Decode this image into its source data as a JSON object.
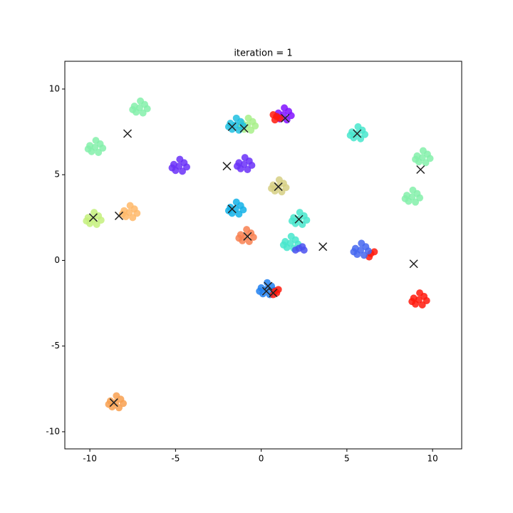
{
  "chart_data": {
    "type": "scatter",
    "title": "iteration = 1",
    "xlim": [
      -11.46,
      11.7
    ],
    "ylim": [
      -11.0,
      11.62
    ],
    "xticks": [
      -10,
      -5,
      0,
      5,
      10
    ],
    "yticks": [
      -10,
      -5,
      0,
      5,
      10
    ],
    "grid": false,
    "series": [
      {
        "color": "#84f0aa",
        "x": [
          -7.1,
          -6.8,
          -7.4,
          -6.9,
          -7.3,
          -6.65,
          -7.5,
          -7.05
        ],
        "y": [
          8.9,
          9.1,
          9.0,
          8.6,
          8.65,
          8.85,
          8.8,
          9.3
        ]
      },
      {
        "color": "#84f0aa",
        "x": [
          -9.7,
          -9.4,
          -10.0,
          -9.5,
          -9.9,
          -9.25,
          -10.1,
          -9.65
        ],
        "y": [
          6.6,
          6.8,
          6.7,
          6.3,
          6.35,
          6.55,
          6.5,
          7.0
        ]
      },
      {
        "color": "#84f0aa",
        "x": [
          9.4,
          9.7,
          9.1,
          9.6,
          9.2,
          9.85,
          9.0,
          9.45
        ],
        "y": [
          6.0,
          6.2,
          6.1,
          5.7,
          5.75,
          5.95,
          5.9,
          6.4
        ]
      },
      {
        "color": "#84f0aa",
        "x": [
          8.8,
          9.1,
          8.5,
          9.0,
          8.6,
          9.25,
          8.4,
          8.85
        ],
        "y": [
          3.7,
          3.9,
          3.8,
          3.4,
          3.45,
          3.65,
          3.6,
          4.1
        ]
      },
      {
        "color": "#6a30f8",
        "x": [
          -4.8,
          -4.5,
          -5.1,
          -4.6,
          -5.0,
          -4.35,
          -5.2,
          -4.75
        ],
        "y": [
          5.5,
          5.7,
          5.6,
          5.2,
          5.25,
          5.45,
          5.4,
          5.9
        ]
      },
      {
        "color": "#6a30f8",
        "x": [
          -1.0,
          -0.7,
          -1.3,
          -0.8,
          -1.2,
          -0.55,
          -1.4,
          -0.95
        ],
        "y": [
          5.6,
          5.8,
          5.7,
          5.3,
          5.35,
          5.55,
          5.5,
          6.0
        ]
      },
      {
        "color": "#a8f08a",
        "x": [
          -0.8,
          -0.5,
          -1.1,
          -0.6,
          -1.0,
          -0.35,
          -1.2,
          -0.75
        ],
        "y": [
          7.9,
          8.1,
          8.0,
          7.6,
          7.65,
          7.85,
          7.8,
          8.3
        ]
      },
      {
        "color": "#20c0e0",
        "x": [
          -1.5,
          -1.2,
          -1.8,
          -1.3,
          -1.7,
          -1.05,
          -1.9,
          -1.45
        ],
        "y": [
          7.9,
          8.1,
          8.0,
          7.6,
          7.65,
          7.85,
          7.8,
          8.3
        ]
      },
      {
        "color": "#8010ff",
        "x": [
          1.3,
          1.6,
          1.0,
          1.5,
          1.1,
          1.75,
          0.9,
          1.35
        ],
        "y": [
          8.5,
          8.7,
          8.6,
          8.2,
          8.25,
          8.45,
          8.4,
          8.9
        ]
      },
      {
        "color": "#ff1a0d",
        "x": [
          0.9,
          0.7,
          1.1,
          0.8
        ],
        "y": [
          8.4,
          8.5,
          8.3,
          8.2
        ]
      },
      {
        "color": "#48e6cc",
        "x": [
          5.6,
          5.9,
          5.3,
          5.8,
          5.4,
          6.05,
          5.2,
          5.65
        ],
        "y": [
          7.4,
          7.6,
          7.5,
          7.1,
          7.15,
          7.35,
          7.3,
          7.8
        ]
      },
      {
        "color": "#d6cf82",
        "x": [
          1.0,
          1.3,
          0.7,
          1.2,
          0.8,
          1.45,
          0.6,
          1.05
        ],
        "y": [
          4.3,
          4.5,
          4.4,
          4.0,
          4.05,
          4.25,
          4.2,
          4.7
        ]
      },
      {
        "color": "#12b2e8",
        "x": [
          -1.5,
          -1.2,
          -1.8,
          -1.3,
          -1.7,
          -1.05,
          -1.9,
          -1.45
        ],
        "y": [
          3.0,
          3.2,
          3.1,
          2.7,
          2.75,
          2.95,
          2.9,
          3.4
        ]
      },
      {
        "color": "#f88050",
        "x": [
          -0.9,
          -0.6,
          -1.2,
          -0.7,
          -1.1,
          -0.45,
          -1.3,
          -0.85
        ],
        "y": [
          1.4,
          1.6,
          1.5,
          1.1,
          1.15,
          1.35,
          1.3,
          1.8
        ]
      },
      {
        "color": "#48e6cc",
        "x": [
          2.2,
          2.5,
          1.9,
          2.4,
          2.0,
          2.65,
          1.8,
          2.25
        ],
        "y": [
          2.4,
          2.6,
          2.5,
          2.1,
          2.15,
          2.35,
          2.3,
          2.8
        ]
      },
      {
        "color": "#48e6cc",
        "x": [
          1.7,
          2.0,
          1.4,
          1.9,
          1.5,
          2.15,
          1.3,
          1.75
        ],
        "y": [
          1.0,
          1.2,
          1.1,
          0.7,
          0.75,
          0.95,
          0.9,
          1.4
        ]
      },
      {
        "color": "#4a50f0",
        "x": [
          2.2,
          2.5,
          2.0,
          2.4
        ],
        "y": [
          0.7,
          0.6,
          0.6,
          0.8
        ]
      },
      {
        "color": "#ff1a0d",
        "x": [
          6.4,
          6.6,
          6.3
        ],
        "y": [
          0.4,
          0.5,
          0.2
        ]
      },
      {
        "color": "#4466f0",
        "x": [
          5.8,
          6.1,
          5.5,
          6.0,
          5.6,
          6.25,
          5.4,
          5.85
        ],
        "y": [
          0.6,
          0.8,
          0.7,
          0.3,
          0.35,
          0.55,
          0.5,
          1.0
        ]
      },
      {
        "color": "#ff1a0d",
        "x": [
          9.2,
          9.5,
          8.9,
          9.4,
          9.0,
          9.65,
          8.8,
          9.25
        ],
        "y": [
          -2.3,
          -2.1,
          -2.2,
          -2.6,
          -2.55,
          -2.35,
          -2.4,
          -1.9
        ]
      },
      {
        "color": "#2080f0",
        "x": [
          0.3,
          0.6,
          0.0,
          0.5,
          0.1,
          0.75,
          -0.1,
          0.35
        ],
        "y": [
          -1.7,
          -1.5,
          -1.6,
          -2.0,
          -1.95,
          -1.75,
          -1.8,
          -1.3
        ]
      },
      {
        "color": "#ff1a0d",
        "x": [
          0.8,
          1.0,
          0.7,
          0.9
        ],
        "y": [
          -1.8,
          -1.7,
          -2.0,
          -1.9
        ]
      },
      {
        "color": "#f8a050",
        "x": [
          -8.5,
          -8.2,
          -8.8,
          -8.3,
          -8.7,
          -8.05,
          -8.9,
          -8.45
        ],
        "y": [
          -8.3,
          -8.1,
          -8.2,
          -8.6,
          -8.55,
          -8.35,
          -8.4,
          -7.9
        ]
      },
      {
        "color": "#ffb868",
        "x": [
          -7.7,
          -7.4,
          -8.0,
          -7.5,
          -7.9,
          -7.25,
          -8.1,
          -7.65
        ],
        "y": [
          2.8,
          3.0,
          2.9,
          2.5,
          2.55,
          2.75,
          2.7,
          3.2
        ]
      },
      {
        "color": "#c4f07c",
        "x": [
          -9.8,
          -9.5,
          -10.1,
          -9.6,
          -10.0,
          -9.35,
          -10.2,
          -9.75
        ],
        "y": [
          2.4,
          2.6,
          2.5,
          2.1,
          2.15,
          2.35,
          2.3,
          2.8
        ]
      }
    ],
    "centroids": {
      "color": "#222222",
      "x": [
        -7.8,
        -2.0,
        -1.7,
        -1.0,
        1.4,
        5.6,
        9.3,
        1.0,
        -1.7,
        -0.8,
        2.2,
        3.6,
        8.9,
        0.4,
        0.3,
        0.7,
        -8.6,
        -8.3,
        -9.8
      ],
      "y": [
        7.4,
        5.5,
        7.8,
        7.7,
        8.3,
        7.4,
        5.3,
        4.3,
        3.0,
        1.4,
        2.4,
        0.8,
        -0.2,
        -1.5,
        -1.8,
        -1.9,
        -8.3,
        2.6,
        2.5
      ]
    }
  }
}
